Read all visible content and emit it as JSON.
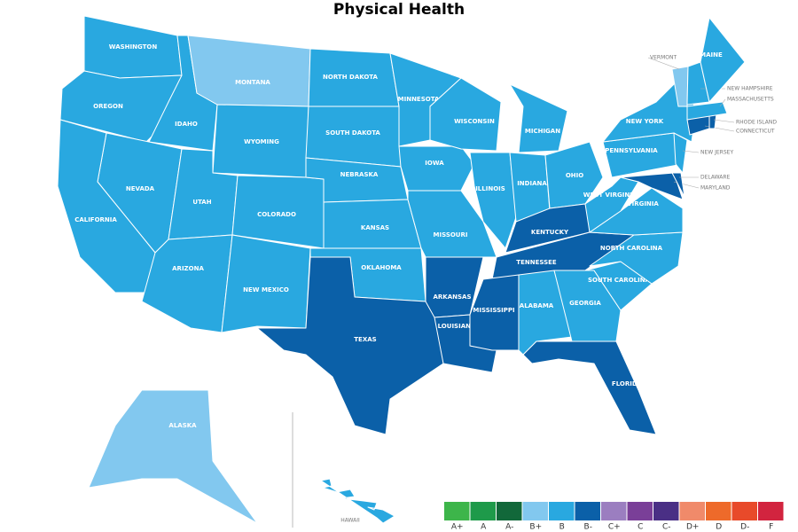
{
  "title": "Physical Health",
  "states": [
    {
      "label": "WASHINGTON",
      "color": "#29a8e0"
    },
    {
      "label": "OREGON",
      "color": "#29a8e0"
    },
    {
      "label": "IDAHO",
      "color": "#29a8e0"
    },
    {
      "label": "MONTANA",
      "color": "#82c8ef"
    },
    {
      "label": "WYOMING",
      "color": "#29a8e0"
    },
    {
      "label": "NEVADA",
      "color": "#29a8e0"
    },
    {
      "label": "CALIFORNIA",
      "color": "#29a8e0"
    },
    {
      "label": "UTAH",
      "color": "#29a8e0"
    },
    {
      "label": "ARIZONA",
      "color": "#29a8e0"
    },
    {
      "label": "COLORADO",
      "color": "#29a8e0"
    },
    {
      "label": "NEW MEXICO",
      "color": "#29a8e0"
    },
    {
      "label": "NORTH DAKOTA",
      "color": "#29a8e0"
    },
    {
      "label": "SOUTH DAKOTA",
      "color": "#29a8e0"
    },
    {
      "label": "NEBRASKA",
      "color": "#29a8e0"
    },
    {
      "label": "KANSAS",
      "color": "#29a8e0"
    },
    {
      "label": "OKLAHOMA",
      "color": "#29a8e0"
    },
    {
      "label": "TEXAS",
      "color": "#0b60a8"
    },
    {
      "label": "MINNESOTA",
      "color": "#29a8e0"
    },
    {
      "label": "IOWA",
      "color": "#29a8e0"
    },
    {
      "label": "MISSOURI",
      "color": "#29a8e0"
    },
    {
      "label": "ARKANSAS",
      "color": "#0b60a8"
    },
    {
      "label": "LOUISIANA",
      "color": "#0b60a8"
    },
    {
      "label": "WISCONSIN",
      "color": "#29a8e0"
    },
    {
      "label": "ILLINOIS",
      "color": "#29a8e0"
    },
    {
      "label": "MICHIGAN",
      "color": "#29a8e0"
    },
    {
      "label": "INDIANA",
      "color": "#29a8e0"
    },
    {
      "label": "OHIO",
      "color": "#29a8e0"
    },
    {
      "label": "KENTUCKY",
      "color": "#0b60a8"
    },
    {
      "label": "TENNESSEE",
      "color": "#0b60a8"
    },
    {
      "label": "MISSISSIPPI",
      "color": "#0b60a8"
    },
    {
      "label": "ALABAMA",
      "color": "#29a8e0"
    },
    {
      "label": "GEORGIA",
      "color": "#29a8e0"
    },
    {
      "label": "FLORIDA",
      "color": "#0b60a8"
    },
    {
      "label": "SOUTH CAROLINA",
      "color": "#29a8e0"
    },
    {
      "label": "NORTH CAROLINA",
      "color": "#29a8e0"
    },
    {
      "label": "VIRGINIA",
      "color": "#29a8e0"
    },
    {
      "label": "WEST VIRGINIA",
      "color": "#29a8e0"
    },
    {
      "label": "PENNSYLVANIA",
      "color": "#29a8e0"
    },
    {
      "label": "NEW YORK",
      "color": "#29a8e0"
    },
    {
      "label": "MARYLAND",
      "color": "#0b60a8"
    },
    {
      "label": "DELAWARE",
      "color": "#0b60a8"
    },
    {
      "label": "NEW JERSEY",
      "color": "#29a8e0"
    },
    {
      "label": "CONNECTICUT",
      "color": "#0b60a8"
    },
    {
      "label": "RHODE ISLAND",
      "color": "#0b60a8"
    },
    {
      "label": "MASSACHUSETTS",
      "color": "#29a8e0"
    },
    {
      "label": "VERMONT",
      "color": "#82c8ef"
    },
    {
      "label": "NEW HAMPSHIRE",
      "color": "#29a8e0"
    },
    {
      "label": "MAINE",
      "color": "#29a8e0"
    },
    {
      "label": "ALASKA",
      "color": "#82c8ef"
    },
    {
      "label": "HAWAII",
      "color": "#29a8e0"
    }
  ],
  "legend": [
    {
      "label": "A+",
      "color": "#3db54a"
    },
    {
      "label": "A",
      "color": "#1e9a4a"
    },
    {
      "label": "A-",
      "color": "#12683a"
    },
    {
      "label": "B+",
      "color": "#82c8ef"
    },
    {
      "label": "B",
      "color": "#29a8e0"
    },
    {
      "label": "B-",
      "color": "#0b60a8"
    },
    {
      "label": "C+",
      "color": "#9b7ec0"
    },
    {
      "label": "C",
      "color": "#7a3f98"
    },
    {
      "label": "C-",
      "color": "#4a2f85"
    },
    {
      "label": "D+",
      "color": "#f08a6a"
    },
    {
      "label": "D",
      "color": "#ee6a2a"
    },
    {
      "label": "D-",
      "color": "#e84a2a"
    },
    {
      "label": "F",
      "color": "#d2243f"
    }
  ]
}
